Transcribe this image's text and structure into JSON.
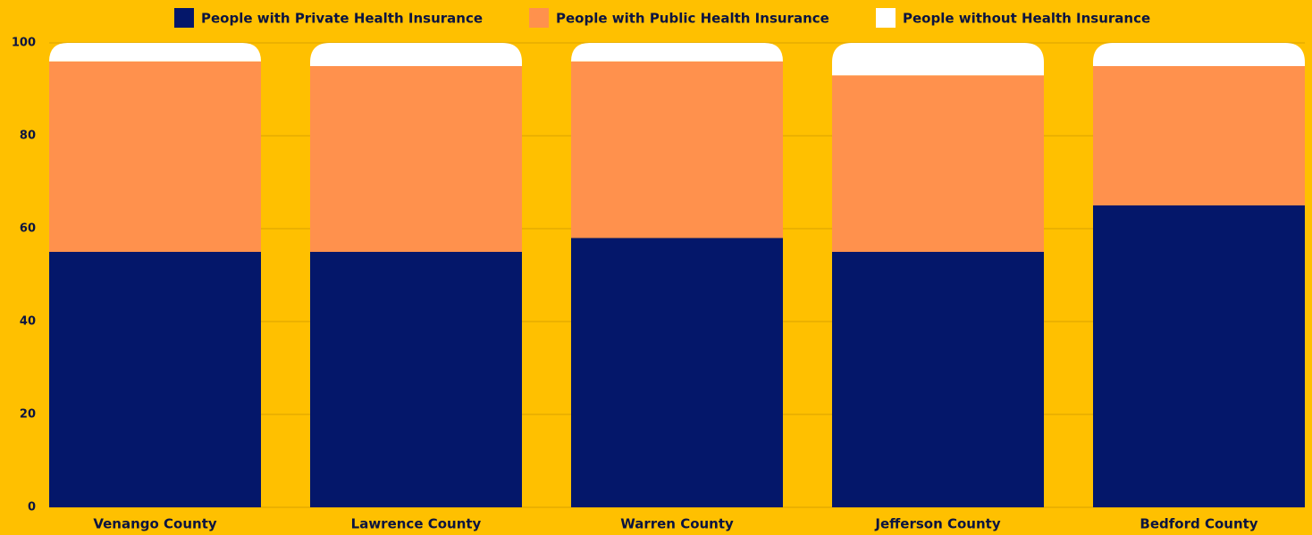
{
  "chart_data": {
    "type": "stacked_bar",
    "categories": [
      "Venango County",
      "Lawrence County",
      "Warren County",
      "Jefferson County",
      "Bedford County"
    ],
    "series": [
      {
        "name": "People with Private Health Insurance",
        "color": "#04176a",
        "values": [
          55,
          55,
          58,
          55,
          65
        ]
      },
      {
        "name": "People with Public Health Insurance",
        "color": "#ff914d",
        "values": [
          41,
          40,
          38,
          38,
          30
        ]
      },
      {
        "name": "People without Health Insurance",
        "color": "#ffffff",
        "values": [
          4,
          5,
          4,
          7,
          5
        ]
      }
    ],
    "ylim": [
      0,
      100
    ],
    "yticks": [
      0,
      20,
      40,
      60,
      80,
      100
    ],
    "grid": true,
    "legend": "top"
  }
}
